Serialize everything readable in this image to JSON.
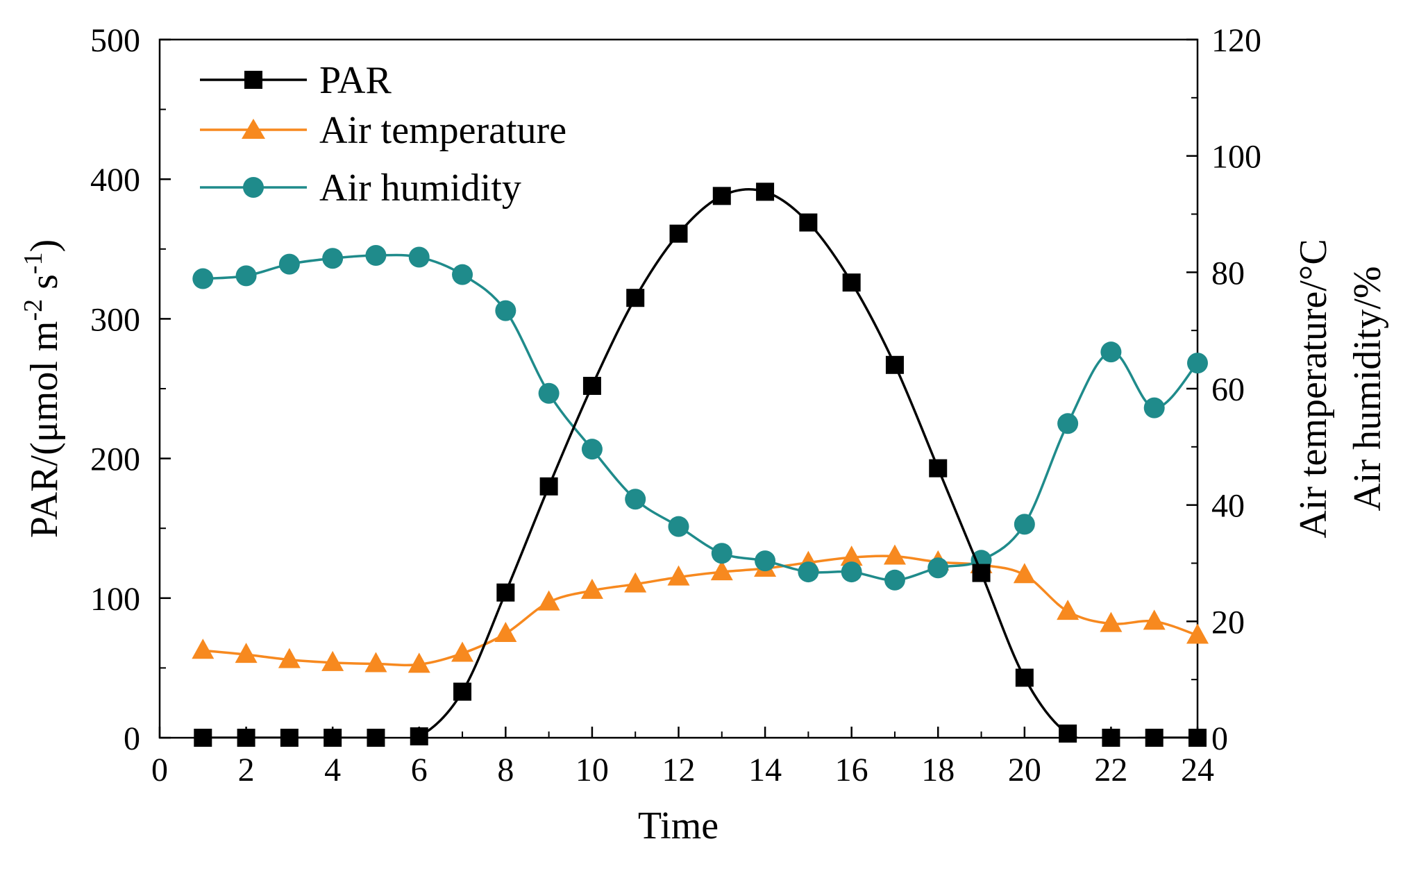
{
  "chart_data": {
    "type": "line",
    "xlabel": "Time",
    "ylabel_left_prefix": "PAR/(μmol m",
    "ylabel_left_exp1": "-2",
    "ylabel_left_mid": " s",
    "ylabel_left_exp2": "-1",
    "ylabel_left_suffix": ")",
    "ylabel_right_1": "Air temperature/°C",
    "ylabel_right_2": "Air humidity/%",
    "xlim": [
      0,
      24
    ],
    "ylim_left": [
      0,
      500
    ],
    "ylim_right": [
      0,
      120
    ],
    "x_ticks": [
      "0",
      "2",
      "4",
      "6",
      "8",
      "10",
      "12",
      "14",
      "16",
      "18",
      "20",
      "22",
      "24"
    ],
    "y_left_ticks": [
      "0",
      "100",
      "200",
      "300",
      "400",
      "500"
    ],
    "y_right_ticks": [
      "0",
      "20",
      "40",
      "60",
      "80",
      "100",
      "120"
    ],
    "x": [
      1,
      2,
      3,
      4,
      5,
      6,
      7,
      8,
      9,
      10,
      11,
      12,
      13,
      14,
      15,
      16,
      17,
      18,
      19,
      20,
      21,
      22,
      23,
      24
    ],
    "series": [
      {
        "name": "PAR",
        "axis": "left",
        "marker": "square",
        "color": "#000000",
        "values": [
          0,
          0,
          0,
          0,
          0,
          1,
          33,
          104,
          180,
          252,
          315,
          361,
          388,
          391,
          369,
          326,
          267,
          193,
          118,
          43,
          3,
          0,
          0,
          0
        ]
      },
      {
        "name": "Air temperature",
        "axis": "right",
        "marker": "triangle",
        "color": "#f7891f",
        "values": [
          15,
          14.3,
          13.4,
          12.9,
          12.7,
          12.6,
          14.5,
          17.9,
          23.3,
          25.3,
          26.4,
          27.6,
          28.5,
          29.1,
          30.1,
          31.0,
          31.2,
          30.2,
          29.7,
          28.0,
          21.7,
          19.6,
          20.0,
          17.6
        ]
      },
      {
        "name": "Air humidity",
        "axis": "right",
        "marker": "circle",
        "color": "#1f8b8b",
        "values": [
          78.9,
          79.4,
          81.4,
          82.4,
          82.9,
          82.6,
          79.6,
          73.4,
          59.2,
          49.6,
          41.0,
          36.3,
          31.7,
          30.4,
          28.5,
          28.5,
          27.1,
          29.2,
          30.5,
          36.7,
          54.0,
          66.3,
          56.7,
          64.4
        ]
      }
    ],
    "legend_position": "top-left"
  }
}
